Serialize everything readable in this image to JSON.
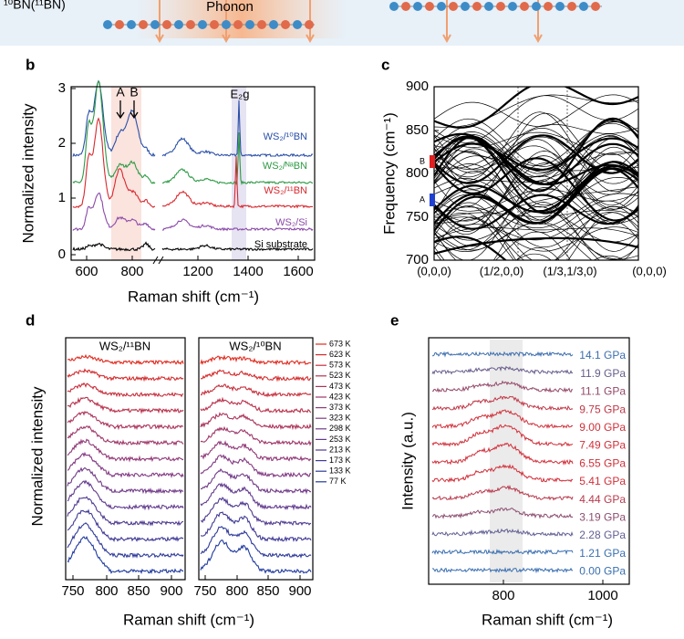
{
  "banner": {
    "left_label": "¹⁰BN(¹¹BN)",
    "center_label": "Phonon"
  },
  "panel_b": {
    "letter": "b",
    "y_axis_label": "Normalized intensity",
    "x_axis_label": "Raman shift (cm⁻¹)",
    "yticks": [
      "0",
      "1",
      "2",
      "3"
    ],
    "xticks": [
      "600",
      "800",
      "1200",
      "1400",
      "1600"
    ],
    "peak_labels": [
      "A",
      "B"
    ],
    "mode_label": "E₂g",
    "traces": [
      "WS₂/¹⁰BN",
      "WS₂/ᴺᵃBN",
      "WS₂/¹¹BN",
      "WS₂/Si",
      "Si substrate"
    ]
  },
  "panel_c": {
    "letter": "c",
    "y_axis_label": "Frequency (cm⁻¹)",
    "yticks": [
      "900",
      "850",
      "800",
      "750",
      "700"
    ],
    "xticks": [
      "(0,0,0)",
      "(1/2,0,0)",
      "(1/3,1/3,0)",
      "(0,0,0)"
    ],
    "markers": [
      "B",
      "A"
    ]
  },
  "panel_d": {
    "letter": "d",
    "y_axis_label": "Normalized intensity",
    "x_axis_label": "Raman shift (cm⁻¹)",
    "panel_titles": [
      "WS₂/¹¹BN",
      "WS₂/¹⁰BN"
    ],
    "xticks": [
      "750",
      "800",
      "850",
      "900"
    ],
    "temperatures": [
      "673 K",
      "623 K",
      "573 K",
      "523 K",
      "473 K",
      "423 K",
      "373 K",
      "323 K",
      "298 K",
      "253 K",
      "213 K",
      "173 K",
      "133 K",
      "77 K"
    ]
  },
  "panel_e": {
    "letter": "e",
    "y_axis_label": "Intensity (a.u.)",
    "x_axis_label": "Raman shift (cm⁻¹)",
    "xticks": [
      "800",
      "1000"
    ],
    "pressures": [
      "14.1 GPa",
      "11.9 GPa",
      "11.1 GPa",
      "9.75 GPa",
      "9.00 GPa",
      "7.49 GPa",
      "6.55 GPa",
      "5.41 GPa",
      "4.44 GPa",
      "3.19 GPa",
      "2.28 GPa",
      "1.21 GPa",
      "0.00 GPa"
    ]
  }
}
